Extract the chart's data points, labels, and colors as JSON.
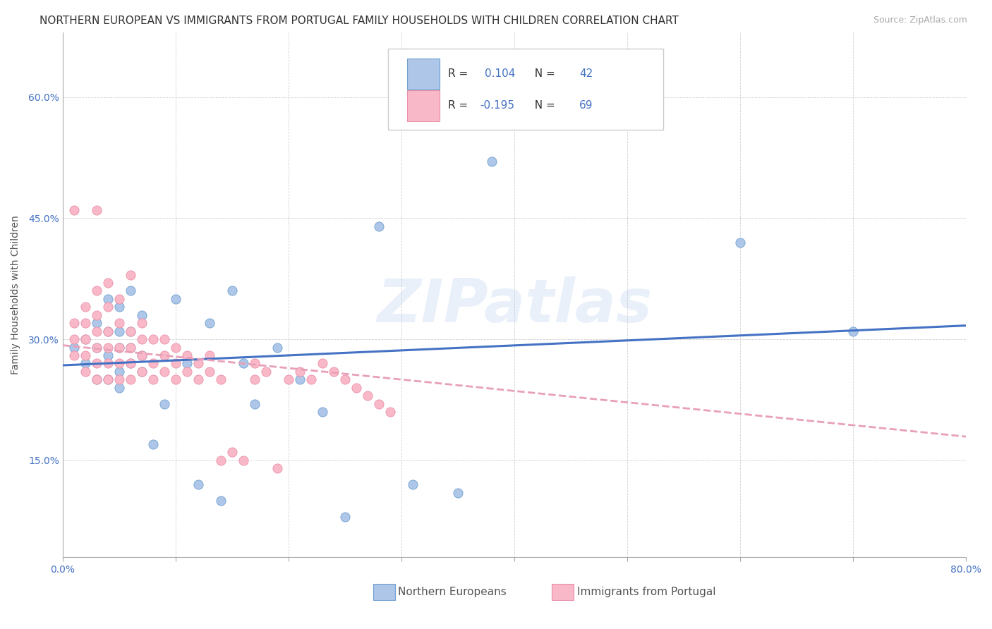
{
  "title": "NORTHERN EUROPEAN VS IMMIGRANTS FROM PORTUGAL FAMILY HOUSEHOLDS WITH CHILDREN CORRELATION CHART",
  "source": "Source: ZipAtlas.com",
  "ylabel": "Family Households with Children",
  "ytick_labels": [
    "15.0%",
    "30.0%",
    "45.0%",
    "60.0%"
  ],
  "ytick_values": [
    0.15,
    0.3,
    0.45,
    0.6
  ],
  "xtick_edge_left": "0.0%",
  "xtick_edge_right": "80.0%",
  "xlim": [
    0.0,
    0.8
  ],
  "ylim": [
    0.03,
    0.68
  ],
  "legend_label1": "Northern Europeans",
  "legend_label2": "Immigrants from Portugal",
  "R1": 0.104,
  "N1": 42,
  "R2": -0.195,
  "N2": 69,
  "color_blue": "#aec6e8",
  "color_pink": "#f9b8c8",
  "edge_blue": "#6fa0d0",
  "edge_pink": "#e890a8",
  "trendline_blue": "#4472c4",
  "trendline_pink": "#e8a0b8",
  "watermark": "ZIPatlas",
  "blue_x": [
    0.01,
    0.02,
    0.02,
    0.03,
    0.03,
    0.03,
    0.04,
    0.04,
    0.04,
    0.04,
    0.05,
    0.05,
    0.05,
    0.05,
    0.05,
    0.06,
    0.06,
    0.06,
    0.06,
    0.07,
    0.07,
    0.07,
    0.08,
    0.09,
    0.1,
    0.11,
    0.12,
    0.13,
    0.14,
    0.15,
    0.16,
    0.17,
    0.19,
    0.21,
    0.23,
    0.25,
    0.28,
    0.31,
    0.35,
    0.38,
    0.6,
    0.7
  ],
  "blue_y": [
    0.29,
    0.27,
    0.3,
    0.25,
    0.29,
    0.32,
    0.25,
    0.28,
    0.31,
    0.35,
    0.24,
    0.26,
    0.29,
    0.31,
    0.34,
    0.27,
    0.29,
    0.31,
    0.36,
    0.26,
    0.28,
    0.33,
    0.17,
    0.22,
    0.35,
    0.27,
    0.12,
    0.32,
    0.1,
    0.36,
    0.27,
    0.22,
    0.29,
    0.25,
    0.21,
    0.08,
    0.44,
    0.12,
    0.11,
    0.52,
    0.42,
    0.31
  ],
  "pink_x": [
    0.01,
    0.01,
    0.01,
    0.01,
    0.02,
    0.02,
    0.02,
    0.02,
    0.02,
    0.03,
    0.03,
    0.03,
    0.03,
    0.03,
    0.03,
    0.03,
    0.04,
    0.04,
    0.04,
    0.04,
    0.04,
    0.04,
    0.05,
    0.05,
    0.05,
    0.05,
    0.05,
    0.06,
    0.06,
    0.06,
    0.06,
    0.06,
    0.07,
    0.07,
    0.07,
    0.07,
    0.08,
    0.08,
    0.08,
    0.09,
    0.09,
    0.09,
    0.1,
    0.1,
    0.1,
    0.11,
    0.11,
    0.12,
    0.12,
    0.13,
    0.13,
    0.14,
    0.14,
    0.15,
    0.16,
    0.17,
    0.17,
    0.18,
    0.19,
    0.2,
    0.21,
    0.22,
    0.23,
    0.24,
    0.25,
    0.26,
    0.27,
    0.28,
    0.29
  ],
  "pink_y": [
    0.28,
    0.3,
    0.32,
    0.46,
    0.26,
    0.28,
    0.3,
    0.32,
    0.34,
    0.25,
    0.27,
    0.29,
    0.31,
    0.33,
    0.36,
    0.46,
    0.25,
    0.27,
    0.29,
    0.31,
    0.34,
    0.37,
    0.25,
    0.27,
    0.29,
    0.32,
    0.35,
    0.25,
    0.27,
    0.29,
    0.31,
    0.38,
    0.26,
    0.28,
    0.3,
    0.32,
    0.25,
    0.27,
    0.3,
    0.26,
    0.28,
    0.3,
    0.25,
    0.27,
    0.29,
    0.26,
    0.28,
    0.25,
    0.27,
    0.26,
    0.28,
    0.25,
    0.15,
    0.16,
    0.15,
    0.25,
    0.27,
    0.26,
    0.14,
    0.25,
    0.26,
    0.25,
    0.27,
    0.26,
    0.25,
    0.24,
    0.23,
    0.22,
    0.21
  ],
  "title_fontsize": 11,
  "axis_label_fontsize": 10,
  "tick_fontsize": 10,
  "legend_fontsize": 11,
  "source_fontsize": 9
}
